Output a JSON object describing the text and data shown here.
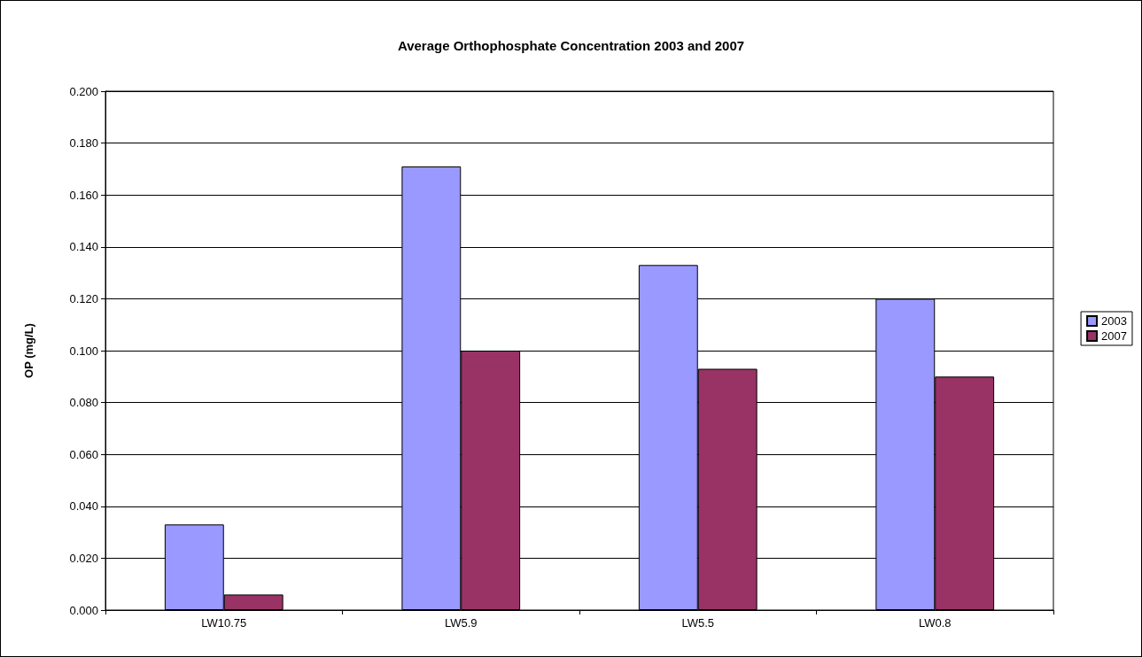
{
  "chart_data": {
    "type": "bar",
    "title": "Average Orthophosphate Concentration 2003 and 2007",
    "ylabel": "OP (mg/L)",
    "categories": [
      "LW10.75",
      "LW5.9",
      "LW5.5",
      "LW0.8"
    ],
    "series": [
      {
        "name": "2003",
        "color": "#9999ff",
        "values": [
          0.033,
          0.171,
          0.133,
          0.12
        ]
      },
      {
        "name": "2007",
        "color": "#993366",
        "values": [
          0.006,
          0.1,
          0.093,
          0.09
        ]
      }
    ],
    "ylim": [
      0,
      0.2
    ],
    "yticks": [
      {
        "value": 0,
        "label": "0.000"
      },
      {
        "value": 0.02,
        "label": "0.020"
      },
      {
        "value": 0.04,
        "label": "0.040"
      },
      {
        "value": 0.06,
        "label": "0.060"
      },
      {
        "value": 0.08,
        "label": "0.080"
      },
      {
        "value": 0.1,
        "label": "0.100"
      },
      {
        "value": 0.12,
        "label": "0.120"
      },
      {
        "value": 0.14,
        "label": "0.140"
      },
      {
        "value": 0.16,
        "label": "0.160"
      },
      {
        "value": 0.18,
        "label": "0.180"
      },
      {
        "value": 0.2,
        "label": "0.200"
      }
    ],
    "grid": "y",
    "legend": "right"
  }
}
